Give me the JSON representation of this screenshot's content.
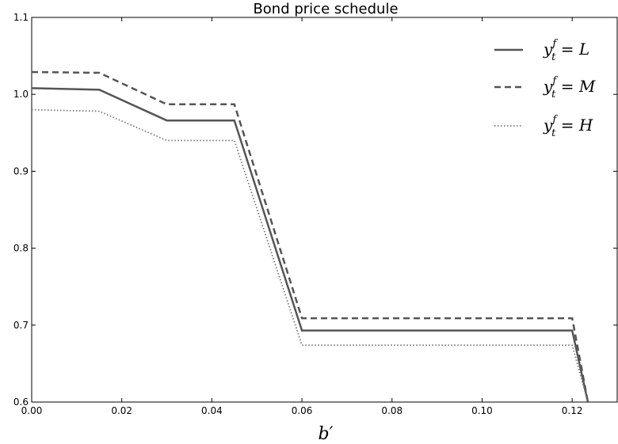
{
  "chart_data": {
    "type": "line",
    "title": "Bond price schedule",
    "xlabel": "b′",
    "ylabel": "",
    "xlim": [
      0.0,
      0.13
    ],
    "ylim": [
      0.6,
      1.1
    ],
    "x_ticks": [
      0.0,
      0.02,
      0.04,
      0.06,
      0.08,
      0.1,
      0.12
    ],
    "x_tick_labels": [
      "0.00",
      "0.02",
      "0.04",
      "0.06",
      "0.08",
      "0.10",
      "0.12"
    ],
    "y_ticks": [
      0.6,
      0.7,
      0.8,
      0.9,
      1.0,
      1.1
    ],
    "y_tick_labels": [
      "0.6",
      "0.7",
      "0.8",
      "0.9",
      "1.0",
      "1.1"
    ],
    "grid": false,
    "legend_position": "top-right",
    "series": [
      {
        "name": "y_t^f = L",
        "label_parts": {
          "base": "y",
          "sup": "f",
          "sub": "t",
          "rest": " = L"
        },
        "style": "solid",
        "color": "#555555",
        "x": [
          0.0,
          0.015,
          0.03,
          0.045,
          0.06,
          0.12,
          0.1235
        ],
        "y": [
          1.008,
          1.006,
          0.966,
          0.966,
          0.693,
          0.693,
          0.6
        ]
      },
      {
        "name": "y_t^f = M",
        "label_parts": {
          "base": "y",
          "sup": "f",
          "sub": "t",
          "rest": " = M"
        },
        "style": "dashed",
        "color": "#555555",
        "x": [
          0.0,
          0.015,
          0.03,
          0.045,
          0.06,
          0.12,
          0.1235
        ],
        "y": [
          1.029,
          1.028,
          0.987,
          0.987,
          0.709,
          0.709,
          0.6
        ]
      },
      {
        "name": "y_t^f = H",
        "label_parts": {
          "base": "y",
          "sup": "f",
          "sub": "t",
          "rest": " = H"
        },
        "style": "dotted",
        "color": "#777777",
        "x": [
          0.0,
          0.015,
          0.03,
          0.045,
          0.06,
          0.12,
          0.1235
        ],
        "y": [
          0.98,
          0.978,
          0.94,
          0.94,
          0.674,
          0.674,
          0.6
        ]
      }
    ]
  }
}
